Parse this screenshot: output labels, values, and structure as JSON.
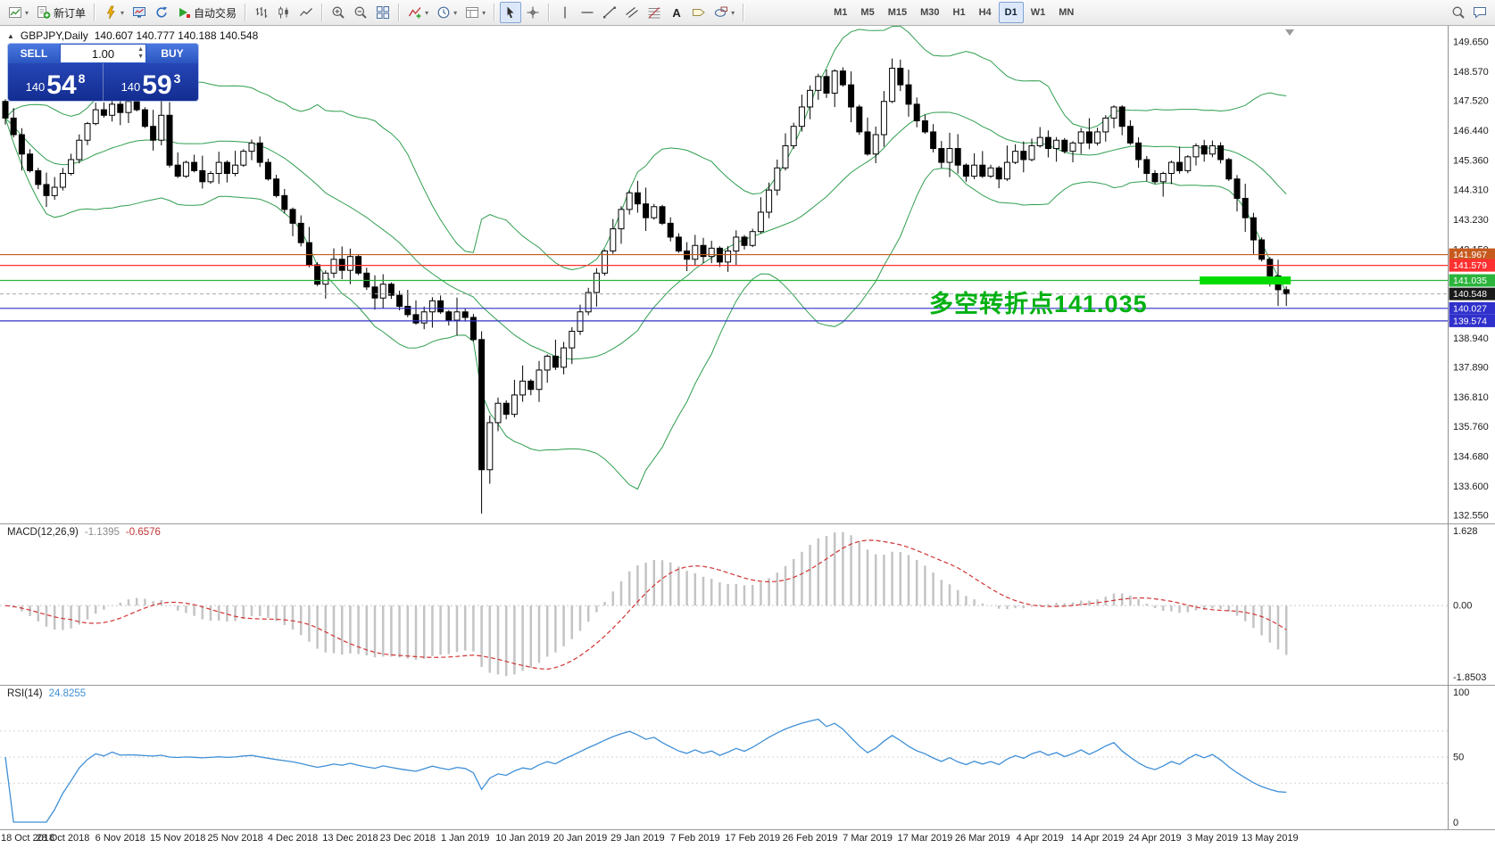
{
  "toolbar": {
    "groups": [
      {
        "items": [
          {
            "icon": "new-chart",
            "name": "new-chart-button",
            "dd": true
          },
          {
            "icon": "new-order",
            "name": "new-order-button",
            "label": "新订单"
          }
        ]
      },
      {
        "items": [
          {
            "icon": "profile",
            "name": "profiles-button",
            "dd": true
          },
          {
            "icon": "market-watch",
            "name": "market-watch-button"
          },
          {
            "icon": "refresh",
            "name": "data-window-button"
          },
          {
            "icon": "autotrade",
            "name": "autotrading-button",
            "label": "自动交易"
          }
        ]
      },
      {
        "items": [
          {
            "icon": "bars",
            "name": "bar-chart-button"
          },
          {
            "icon": "candles",
            "name": "candlestick-chart-button"
          },
          {
            "icon": "line-chart",
            "name": "line-chart-button"
          }
        ]
      },
      {
        "items": [
          {
            "icon": "zoom-in",
            "name": "zoom-in-button"
          },
          {
            "icon": "zoom-out",
            "name": "zoom-out-button"
          },
          {
            "icon": "tile-windows",
            "name": "tile-windows-button"
          }
        ]
      },
      {
        "items": [
          {
            "icon": "indicators",
            "name": "indicators-button",
            "dd": true
          },
          {
            "icon": "period",
            "name": "periods-button",
            "dd": true
          },
          {
            "icon": "template",
            "name": "templates-button",
            "dd": true
          }
        ]
      },
      {
        "items": [
          {
            "icon": "cursor",
            "name": "cursor-button",
            "active": true
          },
          {
            "icon": "crosshair",
            "name": "crosshair-button"
          }
        ]
      },
      {
        "items": [
          {
            "icon": "vline",
            "name": "vertical-line-button"
          },
          {
            "icon": "hline",
            "name": "horizontal-line-button"
          },
          {
            "icon": "trendline",
            "name": "trendline-button"
          },
          {
            "icon": "channel",
            "name": "equidistant-channel-button"
          },
          {
            "icon": "fibo",
            "name": "fibonacci-button"
          },
          {
            "label": "A",
            "name": "text-tool-button",
            "cls": "txt-a"
          },
          {
            "icon": "label",
            "name": "text-label-button"
          },
          {
            "icon": "shapes",
            "name": "shapes-button",
            "dd": true
          }
        ]
      },
      {
        "type": "timeframes",
        "items": [
          {
            "label": "M1"
          },
          {
            "label": "M5"
          },
          {
            "label": "M15"
          },
          {
            "label": "M30"
          },
          {
            "label": "H1"
          },
          {
            "label": "H4"
          },
          {
            "label": "D1",
            "active": true
          },
          {
            "label": "W1"
          },
          {
            "label": "MN"
          }
        ]
      }
    ],
    "right_items": [
      {
        "icon": "search",
        "name": "search-button"
      },
      {
        "icon": "chat",
        "name": "chat-button"
      }
    ]
  },
  "trade_panel": {
    "sell_label": "SELL",
    "buy_label": "BUY",
    "volume": "1.00",
    "bid": {
      "big": "140",
      "mid": "54",
      "sup": "8"
    },
    "ask": {
      "big": "140",
      "mid": "59",
      "sup": "3"
    }
  },
  "chart_data": {
    "type": "candlestick",
    "symbol_label": "GBPJPY,Daily",
    "ohlc": "140.607 140.777 140.188 140.548",
    "first_open": 147.5,
    "closes": [
      146.9,
      146.3,
      145.6,
      145.0,
      144.5,
      144.1,
      144.4,
      144.9,
      145.4,
      146.1,
      146.7,
      147.2,
      147.0,
      147.4,
      147.1,
      147.5,
      147.2,
      146.6,
      146.1,
      147.0,
      145.2,
      144.8,
      145.3,
      145.0,
      144.6,
      144.9,
      145.3,
      144.9,
      145.2,
      145.7,
      146.0,
      145.3,
      144.7,
      144.1,
      143.6,
      143.1,
      142.4,
      141.6,
      140.9,
      141.3,
      141.8,
      141.4,
      141.9,
      141.3,
      140.8,
      140.4,
      140.9,
      140.5,
      140.1,
      139.8,
      139.5,
      139.9,
      140.3,
      139.9,
      139.6,
      139.9,
      139.7,
      138.9,
      134.2,
      135.9,
      136.6,
      136.2,
      136.9,
      137.4,
      137.1,
      137.8,
      138.3,
      137.9,
      138.6,
      139.2,
      139.9,
      140.6,
      141.3,
      142.1,
      142.9,
      143.6,
      144.2,
      143.8,
      143.3,
      143.7,
      143.1,
      142.6,
      142.1,
      141.8,
      142.3,
      141.9,
      142.2,
      141.7,
      142.1,
      142.6,
      142.3,
      142.8,
      143.5,
      144.3,
      145.1,
      145.9,
      146.6,
      147.3,
      147.9,
      148.4,
      147.8,
      148.6,
      148.1,
      147.3,
      146.4,
      145.6,
      146.3,
      147.5,
      148.7,
      148.1,
      147.4,
      146.8,
      146.4,
      145.8,
      145.3,
      145.8,
      145.2,
      144.8,
      145.2,
      144.8,
      145.1,
      144.7,
      145.3,
      145.7,
      145.4,
      145.9,
      146.2,
      145.8,
      146.1,
      145.7,
      146.0,
      146.4,
      146.0,
      146.4,
      146.9,
      147.3,
      146.6,
      146.0,
      145.4,
      144.9,
      144.6,
      144.9,
      145.3,
      145.0,
      145.5,
      145.9,
      145.6,
      145.9,
      145.4,
      144.7,
      144.0,
      143.3,
      142.5,
      141.8,
      141.2,
      140.7,
      140.548
    ],
    "wick_overrides": {
      "58": {
        "high": 139.2,
        "low": 132.62
      },
      "108": {
        "high": 149.05
      },
      "19": {
        "high": 148.3
      }
    },
    "x_labels": [
      "18 Oct 2018",
      "28 Oct 2018",
      "6 Nov 2018",
      "15 Nov 2018",
      "25 Nov 2018",
      "4 Dec 2018",
      "13 Dec 2018",
      "23 Dec 2018",
      "1 Jan 2019",
      "10 Jan 2019",
      "20 Jan 2019",
      "29 Jan 2019",
      "7 Feb 2019",
      "17 Feb 2019",
      "26 Feb 2019",
      "7 Mar 2019",
      "17 Mar 2019",
      "26 Mar 2019",
      "4 Apr 2019",
      "14 Apr 2019",
      "24 Apr 2019",
      "3 May 2019",
      "13 May 2019"
    ],
    "x_label_step": 7,
    "y_range": [
      132.55,
      149.65
    ],
    "y_ticks": [
      "149.650",
      "148.570",
      "147.520",
      "146.440",
      "145.360",
      "144.310",
      "143.230",
      "142.150",
      "141.100",
      "140.020",
      "138.940",
      "137.890",
      "136.810",
      "135.760",
      "134.680",
      "133.600",
      "132.550"
    ],
    "bollinger": {
      "period": 20,
      "deviation": 2,
      "color": "#2f9e4f"
    },
    "hlines": [
      {
        "price": 141.967,
        "label": "141.967",
        "color": "#c65a1e",
        "style": "solid"
      },
      {
        "price": 141.579,
        "label": "141.579",
        "color": "#ff3030",
        "style": "solid"
      },
      {
        "price": 141.035,
        "label": "141.035",
        "color": "#2ab43c",
        "style": "solid"
      },
      {
        "price": 140.548,
        "label": "140.548",
        "color": "#1a1a1a",
        "style": "current"
      },
      {
        "price": 140.027,
        "label": "140.027",
        "color": "#3030cc",
        "style": "solid"
      },
      {
        "price": 139.574,
        "label": "139.574",
        "color": "#3030cc",
        "style": "solid"
      }
    ],
    "highlight": {
      "price": 141.035,
      "from_index": 146,
      "to_index": 156,
      "color": "#00dc00",
      "thickness": 9
    },
    "annotation": {
      "text": "多空转折点141.035",
      "color": "#00b112"
    },
    "macd": {
      "name": "MACD(12,26,9)",
      "main_value": "-1.1395",
      "signal_value": "-0.6576",
      "params": {
        "fast": 12,
        "slow": 26,
        "signal": 9
      },
      "ticks": [
        "1.628",
        "0.00",
        "-1.8503"
      ]
    },
    "rsi": {
      "name": "RSI(14)",
      "value": "24.8255",
      "period": 14,
      "ticks": [
        "100",
        "50",
        "0"
      ],
      "levels": [
        70,
        50,
        30
      ]
    }
  }
}
